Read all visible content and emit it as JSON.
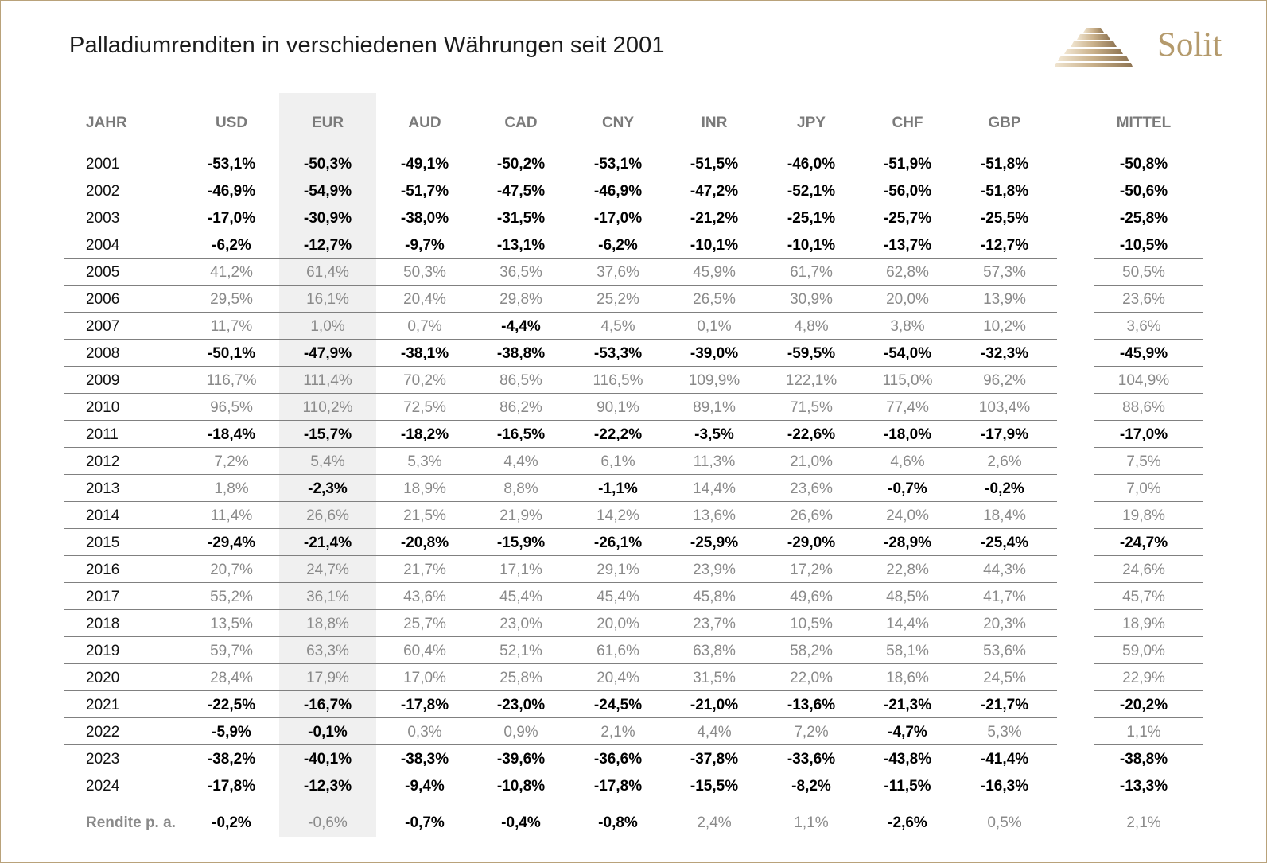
{
  "title": "Palladiumrenditen in verschiedenen Währungen seit 2001",
  "logo": {
    "text": "Solit",
    "color": "#b49a6c",
    "icon": "stacked-bars-pyramid-icon"
  },
  "colors": {
    "negative": "#000000",
    "positive": "#8a8a8a",
    "header": "#7a7a7a",
    "frame": "#b9a27a",
    "highlight_band": "#f0f0f0"
  },
  "chart_data": {
    "type": "table",
    "title": "Palladiumrenditen in verschiedenen Währungen seit 2001",
    "columns": [
      "JAHR",
      "USD",
      "EUR",
      "AUD",
      "CAD",
      "CNY",
      "INR",
      "JPY",
      "CHF",
      "GBP",
      "MITTEL"
    ],
    "highlighted_column": "EUR",
    "rows": [
      {
        "year": "2001",
        "values": [
          "-53,1%",
          "-50,3%",
          "-49,1%",
          "-50,2%",
          "-53,1%",
          "-51,5%",
          "-46,0%",
          "-51,9%",
          "-51,8%",
          "-50,8%"
        ]
      },
      {
        "year": "2002",
        "values": [
          "-46,9%",
          "-54,9%",
          "-51,7%",
          "-47,5%",
          "-46,9%",
          "-47,2%",
          "-52,1%",
          "-56,0%",
          "-51,8%",
          "-50,6%"
        ]
      },
      {
        "year": "2003",
        "values": [
          "-17,0%",
          "-30,9%",
          "-38,0%",
          "-31,5%",
          "-17,0%",
          "-21,2%",
          "-25,1%",
          "-25,7%",
          "-25,5%",
          "-25,8%"
        ]
      },
      {
        "year": "2004",
        "values": [
          "-6,2%",
          "-12,7%",
          "-9,7%",
          "-13,1%",
          "-6,2%",
          "-10,1%",
          "-10,1%",
          "-13,7%",
          "-12,7%",
          "-10,5%"
        ]
      },
      {
        "year": "2005",
        "values": [
          "41,2%",
          "61,4%",
          "50,3%",
          "36,5%",
          "37,6%",
          "45,9%",
          "61,7%",
          "62,8%",
          "57,3%",
          "50,5%"
        ]
      },
      {
        "year": "2006",
        "values": [
          "29,5%",
          "16,1%",
          "20,4%",
          "29,8%",
          "25,2%",
          "26,5%",
          "30,9%",
          "20,0%",
          "13,9%",
          "23,6%"
        ]
      },
      {
        "year": "2007",
        "values": [
          "11,7%",
          "1,0%",
          "0,7%",
          "-4,4%",
          "4,5%",
          "0,1%",
          "4,8%",
          "3,8%",
          "10,2%",
          "3,6%"
        ]
      },
      {
        "year": "2008",
        "values": [
          "-50,1%",
          "-47,9%",
          "-38,1%",
          "-38,8%",
          "-53,3%",
          "-39,0%",
          "-59,5%",
          "-54,0%",
          "-32,3%",
          "-45,9%"
        ]
      },
      {
        "year": "2009",
        "values": [
          "116,7%",
          "111,4%",
          "70,2%",
          "86,5%",
          "116,5%",
          "109,9%",
          "122,1%",
          "115,0%",
          "96,2%",
          "104,9%"
        ]
      },
      {
        "year": "2010",
        "values": [
          "96,5%",
          "110,2%",
          "72,5%",
          "86,2%",
          "90,1%",
          "89,1%",
          "71,5%",
          "77,4%",
          "103,4%",
          "88,6%"
        ]
      },
      {
        "year": "2011",
        "values": [
          "-18,4%",
          "-15,7%",
          "-18,2%",
          "-16,5%",
          "-22,2%",
          "-3,5%",
          "-22,6%",
          "-18,0%",
          "-17,9%",
          "-17,0%"
        ]
      },
      {
        "year": "2012",
        "values": [
          "7,2%",
          "5,4%",
          "5,3%",
          "4,4%",
          "6,1%",
          "11,3%",
          "21,0%",
          "4,6%",
          "2,6%",
          "7,5%"
        ]
      },
      {
        "year": "2013",
        "values": [
          "1,8%",
          "-2,3%",
          "18,9%",
          "8,8%",
          "-1,1%",
          "14,4%",
          "23,6%",
          "-0,7%",
          "-0,2%",
          "7,0%"
        ]
      },
      {
        "year": "2014",
        "values": [
          "11,4%",
          "26,6%",
          "21,5%",
          "21,9%",
          "14,2%",
          "13,6%",
          "26,6%",
          "24,0%",
          "18,4%",
          "19,8%"
        ]
      },
      {
        "year": "2015",
        "values": [
          "-29,4%",
          "-21,4%",
          "-20,8%",
          "-15,9%",
          "-26,1%",
          "-25,9%",
          "-29,0%",
          "-28,9%",
          "-25,4%",
          "-24,7%"
        ]
      },
      {
        "year": "2016",
        "values": [
          "20,7%",
          "24,7%",
          "21,7%",
          "17,1%",
          "29,1%",
          "23,9%",
          "17,2%",
          "22,8%",
          "44,3%",
          "24,6%"
        ]
      },
      {
        "year": "2017",
        "values": [
          "55,2%",
          "36,1%",
          "43,6%",
          "45,4%",
          "45,4%",
          "45,8%",
          "49,6%",
          "48,5%",
          "41,7%",
          "45,7%"
        ]
      },
      {
        "year": "2018",
        "values": [
          "13,5%",
          "18,8%",
          "25,7%",
          "23,0%",
          "20,0%",
          "23,7%",
          "10,5%",
          "14,4%",
          "20,3%",
          "18,9%"
        ]
      },
      {
        "year": "2019",
        "values": [
          "59,7%",
          "63,3%",
          "60,4%",
          "52,1%",
          "61,6%",
          "63,8%",
          "58,2%",
          "58,1%",
          "53,6%",
          "59,0%"
        ]
      },
      {
        "year": "2020",
        "values": [
          "28,4%",
          "17,9%",
          "17,0%",
          "25,8%",
          "20,4%",
          "31,5%",
          "22,0%",
          "18,6%",
          "24,5%",
          "22,9%"
        ]
      },
      {
        "year": "2021",
        "values": [
          "-22,5%",
          "-16,7%",
          "-17,8%",
          "-23,0%",
          "-24,5%",
          "-21,0%",
          "-13,6%",
          "-21,3%",
          "-21,7%",
          "-20,2%"
        ]
      },
      {
        "year": "2022",
        "values": [
          "-5,9%",
          "-0,1%",
          "0,3%",
          "0,9%",
          "2,1%",
          "4,4%",
          "7,2%",
          "-4,7%",
          "5,3%",
          "1,1%"
        ]
      },
      {
        "year": "2023",
        "values": [
          "-38,2%",
          "-40,1%",
          "-38,3%",
          "-39,6%",
          "-36,6%",
          "-37,8%",
          "-33,6%",
          "-43,8%",
          "-41,4%",
          "-38,8%"
        ]
      },
      {
        "year": "2024",
        "values": [
          "-17,8%",
          "-12,3%",
          "-9,4%",
          "-10,8%",
          "-17,8%",
          "-15,5%",
          "-8,2%",
          "-11,5%",
          "-16,3%",
          "-13,3%"
        ]
      }
    ],
    "summary": {
      "label": "Rendite p. a.",
      "values": [
        "-0,2%",
        "-0,6%",
        "-0,7%",
        "-0,4%",
        "-0,8%",
        "2,4%",
        "1,1%",
        "-2,6%",
        "0,5%",
        "2,1%"
      ]
    }
  }
}
